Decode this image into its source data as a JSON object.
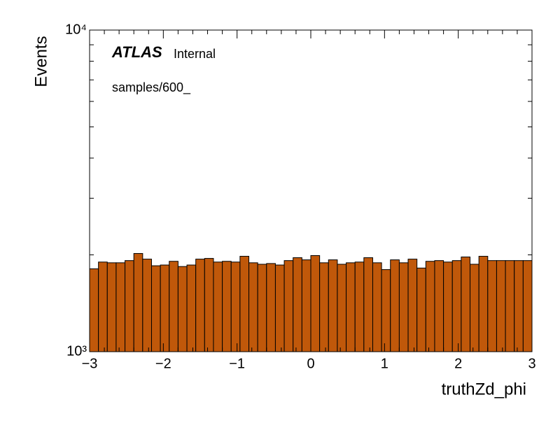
{
  "chart_data": {
    "type": "histogram",
    "xlabel": "truthZd_phi",
    "ylabel": "Events",
    "annotations": {
      "experiment": "ATLAS",
      "status": "Internal",
      "sample": "samples/600_"
    },
    "bins": [
      -3,
      -2.88,
      -2.76,
      -2.64,
      -2.52,
      -2.4,
      -2.28,
      -2.16,
      -2.04,
      -1.92,
      -1.8,
      -1.68,
      -1.56,
      -1.44,
      -1.32,
      -1.2,
      -1.08,
      -0.96,
      -0.84,
      -0.72,
      -0.6,
      -0.48,
      -0.36,
      -0.24,
      -0.12,
      0,
      0.12,
      0.24,
      0.36,
      0.48,
      0.6,
      0.72,
      0.84,
      0.96,
      1.08,
      1.2,
      1.32,
      1.44,
      1.56,
      1.68,
      1.8,
      1.92,
      2.04,
      2.16,
      2.28,
      2.4,
      2.52,
      2.64,
      2.76,
      2.88,
      3
    ],
    "values": [
      1810,
      1900,
      1890,
      1890,
      1920,
      2020,
      1940,
      1850,
      1860,
      1910,
      1840,
      1860,
      1940,
      1950,
      1900,
      1910,
      1900,
      1980,
      1890,
      1870,
      1880,
      1860,
      1920,
      1960,
      1930,
      1990,
      1890,
      1930,
      1870,
      1890,
      1900,
      1960,
      1890,
      1800,
      1930,
      1890,
      1940,
      1820,
      1910,
      1920,
      1900,
      1920,
      1970,
      1870,
      1980,
      1920,
      1920,
      1920,
      1920,
      1920
    ],
    "color": "#c0580a",
    "edgecolor": "#000000",
    "xlim": [
      -3,
      3
    ],
    "xticks": [
      {
        "value": -3,
        "label": "−3"
      },
      {
        "value": -2,
        "label": "−2"
      },
      {
        "value": -1,
        "label": "−1"
      },
      0,
      1,
      2,
      3
    ],
    "xminorticks": [
      -2.8,
      -2.6,
      -2.4,
      -2.2,
      -1.8,
      -1.6,
      -1.4,
      -1.2,
      -0.8,
      -0.6,
      -0.4,
      -0.2,
      0.2,
      0.4,
      0.6,
      0.8,
      1.2,
      1.4,
      1.6,
      1.8,
      2.2,
      2.4,
      2.6,
      2.8
    ],
    "ylim": [
      1000,
      10000
    ],
    "yscale": "log",
    "yticks": [
      {
        "value": 1000,
        "label": "10³"
      },
      {
        "value": 10000,
        "label": "10⁴"
      }
    ],
    "yminorticks": [
      2000,
      3000,
      4000,
      5000,
      6000,
      7000,
      8000,
      9000
    ]
  }
}
